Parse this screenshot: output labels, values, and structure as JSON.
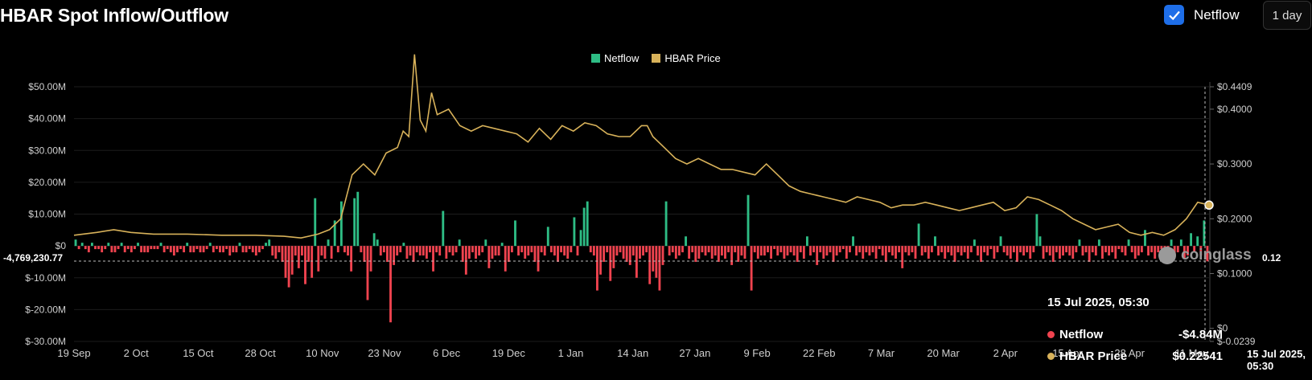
{
  "header": {
    "title": "HBAR Spot Inflow/Outflow",
    "toggle_label": "Netflow",
    "interval": "1 day"
  },
  "legend": {
    "netflow": "Netflow",
    "price": "HBAR Price"
  },
  "colors": {
    "inflow": "#2ebd85",
    "outflow": "#f0434f",
    "price": "#d8b25a",
    "grid": "#1c1c1c",
    "axis_text": "#cfcfcf"
  },
  "crosshair": {
    "left_label": "-4,769,230.77",
    "right_label": "0.12",
    "x_label": "15 Jul 2025, 05:30"
  },
  "tooltip": {
    "date": "15 Jul 2025, 05:30",
    "rows": [
      {
        "name": "Netflow",
        "value": "-$4.84M",
        "color": "#f0434f"
      },
      {
        "name": "HBAR Price",
        "value": "$0.22541",
        "color": "#d8b25a"
      }
    ]
  },
  "watermark": "coinglass",
  "chart_data": {
    "type": "bar+line",
    "title": "HBAR Spot Inflow/Outflow",
    "x_ticks": [
      "19 Sep",
      "2 Oct",
      "15 Oct",
      "28 Oct",
      "10 Nov",
      "23 Nov",
      "6 Dec",
      "19 Dec",
      "1 Jan",
      "14 Jan",
      "27 Jan",
      "9 Feb",
      "22 Feb",
      "7 Mar",
      "20 Mar",
      "2 Apr",
      "15 Apr",
      "28 Apr",
      "11 May"
    ],
    "y_left": {
      "ticks": [
        "$50.00M",
        "$40.00M",
        "$30.00M",
        "$20.00M",
        "$10.00M",
        "$0",
        "$-10.00M",
        "$-20.00M",
        "$-30.00M"
      ],
      "min": -30,
      "max": 50,
      "unit": "M"
    },
    "y_right": {
      "ticks": [
        "$0.4409",
        "$0.4000",
        "$0.3000",
        "$0.2000",
        "$0.1000",
        "$0",
        "$-0.0239"
      ],
      "min": -0.0239,
      "max": 0.4409
    },
    "netflow_M": [
      2,
      -1,
      1,
      -1,
      -2,
      1,
      -1,
      -1,
      -2,
      -1,
      1,
      -2,
      -2,
      -1,
      1,
      -2,
      -1,
      -2,
      -1,
      1,
      -2,
      -2,
      -2,
      -1,
      -1,
      -1,
      1,
      -2,
      -1,
      -2,
      -3,
      -2,
      -1,
      -2,
      1,
      -2,
      -2,
      -1,
      -2,
      -2,
      -1,
      1,
      -2,
      -1,
      -2,
      -2,
      -1,
      -3,
      -2,
      -2,
      1,
      -2,
      -2,
      -1,
      -2,
      -3,
      -2,
      -1,
      1,
      2,
      -3,
      -4,
      -2,
      -5,
      -10,
      -13,
      -9,
      -3,
      -7,
      -3,
      -12,
      -5,
      -10,
      15,
      -8,
      -3,
      -4,
      2,
      -4,
      8,
      -2,
      14,
      -2,
      -3,
      -8,
      15,
      17,
      -2,
      -5,
      -17,
      -8,
      4,
      2,
      -3,
      -2,
      -5,
      -24,
      -6,
      -3,
      -2,
      1,
      -4,
      -3,
      -5,
      -2,
      -3,
      -3,
      -4,
      -2,
      -8,
      -2,
      -3,
      11,
      -4,
      -2,
      -3,
      -2,
      2,
      -5,
      -9,
      -4,
      -2,
      -4,
      -3,
      -2,
      2,
      -7,
      -4,
      -3,
      -3,
      1,
      -8,
      -5,
      -2,
      8,
      -3,
      -2,
      -4,
      -3,
      -2,
      -5,
      -8,
      -2,
      -3,
      6,
      -2,
      -3,
      -5,
      -2,
      -3,
      -4,
      -2,
      9,
      -3,
      5,
      12,
      14,
      -2,
      -3,
      -14,
      -9,
      -5,
      -2,
      -11,
      -7,
      -3,
      -2,
      -4,
      -5,
      -6,
      -3,
      -10,
      -4,
      -3,
      -2,
      -12,
      -8,
      -10,
      -14,
      -6,
      14,
      -3,
      -2,
      -4,
      -3,
      -2,
      3,
      -4,
      -2,
      -5,
      -4,
      -2,
      -3,
      -2,
      -4,
      -3,
      -5,
      -3,
      -4,
      -2,
      -6,
      -2,
      -5,
      -3,
      -4,
      16,
      -14,
      -2,
      -4,
      -3,
      -3,
      -2,
      -4,
      -1,
      -3,
      -2,
      -4,
      -3,
      -2,
      -3,
      -5,
      -2,
      -4,
      3,
      -3,
      -2,
      -6,
      -2,
      -4,
      -3,
      -2,
      -5,
      -3,
      -2,
      -1,
      -4,
      -2,
      3,
      -3,
      -2,
      -4,
      -2,
      -3,
      -2,
      -4,
      -1,
      -3,
      -5,
      -2,
      -3,
      -4,
      -2,
      -7,
      -2,
      -3,
      -2,
      -4,
      7,
      -3,
      -2,
      -4,
      -2,
      3,
      -3,
      -2,
      -4,
      -2,
      -3,
      -5,
      -2,
      -3,
      -2,
      -4,
      -2,
      2,
      -3,
      -5,
      -2,
      -3,
      -1,
      -4,
      -2,
      3,
      -2,
      -3,
      -4,
      -2,
      -5,
      -2,
      -3,
      -2,
      -4,
      -2,
      10,
      3,
      -4,
      -2,
      -3,
      -5,
      -2,
      -4,
      -3,
      -2,
      -3,
      -4,
      -2,
      2,
      -3,
      -2,
      -5,
      -2,
      -3,
      2,
      -4,
      -2,
      -3,
      -2,
      -4,
      -1,
      -2,
      -3,
      2,
      -2,
      -4,
      -3,
      -2,
      5,
      -3,
      -2,
      -4,
      -2,
      -1,
      -3,
      -2,
      2,
      -3,
      -2,
      2,
      -4,
      -3,
      4,
      -2,
      3,
      -3,
      8,
      -4.84
    ]
  }
}
